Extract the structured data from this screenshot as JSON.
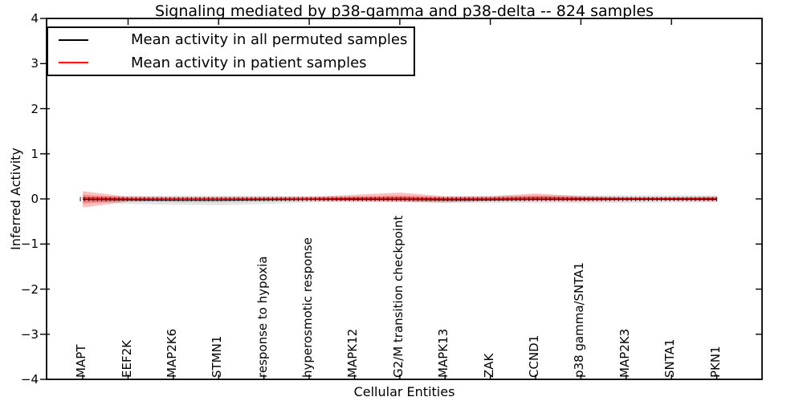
{
  "title": "Signaling mediated by p38-gamma and p38-delta -- 824 samples",
  "legend": {
    "entries": [
      {
        "label": "Mean activity in all permuted samples",
        "color": "#000000"
      },
      {
        "label": "Mean activity in patient samples",
        "color": "#ff0000"
      }
    ]
  },
  "colors": {
    "permuted_line": "#000000",
    "permuted_band": "#000000",
    "patient_line": "#ff0000",
    "patient_band": "#ff0000",
    "axis": "#000000",
    "background": "#ffffff"
  },
  "chart_data": {
    "type": "line",
    "title": "Signaling mediated by p38-gamma and p38-delta -- 824 samples",
    "xlabel": "Cellular Entities",
    "ylabel": "Inferred Activity",
    "ylim": [
      -4,
      4
    ],
    "ytick_labels": [
      "4",
      "3",
      "2",
      "1",
      "0",
      "−1",
      "−2",
      "−3",
      "−4"
    ],
    "ytick_values": [
      4,
      3,
      2,
      1,
      0,
      -1,
      -2,
      -3,
      -4
    ],
    "grid": false,
    "legend_position": "upper left",
    "categories": [
      "MAPT",
      "EEF2K",
      "MAP2K6",
      "STMN1",
      "response to hypoxia",
      "hyperosmotic response",
      "MAPK12",
      "G2/M transition checkpoint",
      "MAPK13",
      "ZAK",
      "CCND1",
      "p38 gamma/SNTA1",
      "MAP2K3",
      "SNTA1",
      "PKN1"
    ],
    "top_tick_category_indices": [
      1,
      3,
      5,
      7,
      9,
      11,
      13
    ],
    "series": [
      {
        "name": "Mean activity in all permuted samples",
        "color": "#000000",
        "values": [
          -0.01,
          -0.02,
          -0.03,
          -0.03,
          -0.02,
          -0.01,
          -0.01,
          -0.01,
          -0.02,
          -0.02,
          -0.01,
          -0.01,
          -0.01,
          -0.01,
          -0.01
        ],
        "band_upper": [
          0.04,
          0.07,
          0.07,
          0.07,
          0.07,
          0.06,
          0.05,
          0.04,
          0.05,
          0.06,
          0.08,
          0.08,
          0.08,
          0.08,
          0.08
        ],
        "band_lower": [
          -0.06,
          -0.11,
          -0.13,
          -0.14,
          -0.11,
          -0.08,
          -0.06,
          -0.06,
          -0.09,
          -0.09,
          -0.09,
          -0.09,
          -0.09,
          -0.08,
          -0.08
        ]
      },
      {
        "name": "Mean activity in patient samples",
        "color": "#ff0000",
        "values": [
          0.02,
          0.0,
          0.0,
          0.0,
          0.0,
          0.0,
          0.01,
          0.02,
          0.0,
          0.0,
          0.02,
          0.01,
          0.01,
          0.01,
          0.01
        ],
        "band_upper": [
          0.17,
          0.05,
          0.04,
          0.04,
          0.04,
          0.05,
          0.09,
          0.14,
          0.06,
          0.06,
          0.12,
          0.06,
          0.03,
          0.03,
          0.05
        ],
        "band_lower": [
          -0.19,
          -0.06,
          -0.04,
          -0.04,
          -0.04,
          -0.04,
          -0.06,
          -0.07,
          -0.08,
          -0.05,
          -0.04,
          -0.05,
          -0.03,
          -0.03,
          -0.05
        ]
      }
    ],
    "sample_tick_markers": {
      "count": 150,
      "at_y": 0
    }
  }
}
